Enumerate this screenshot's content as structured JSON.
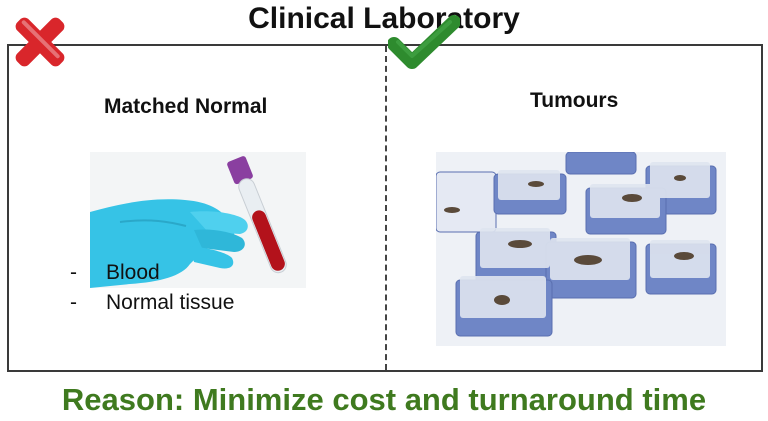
{
  "title": "Clinical Laboratory",
  "left_panel": {
    "heading": "Matched Normal",
    "status_icon": "red-cross-icon",
    "illustration": "gloved-hand-holding-blood-tube",
    "items": [
      {
        "bullet": "-",
        "label": "Blood"
      },
      {
        "bullet": "-",
        "label": "Normal tissue"
      }
    ]
  },
  "right_panel": {
    "heading": "Tumours",
    "status_icon": "green-check-icon",
    "illustration": "tissue-cassettes-with-samples"
  },
  "reason": "Reason: Minimize cost and turnaround time",
  "colors": {
    "cross": "#d9262b",
    "check": "#2e8b2e",
    "reason": "#3f7a1f",
    "glove": "#36c3e6",
    "tube_cap": "#8a3fa0",
    "blood": "#b3121b"
  }
}
